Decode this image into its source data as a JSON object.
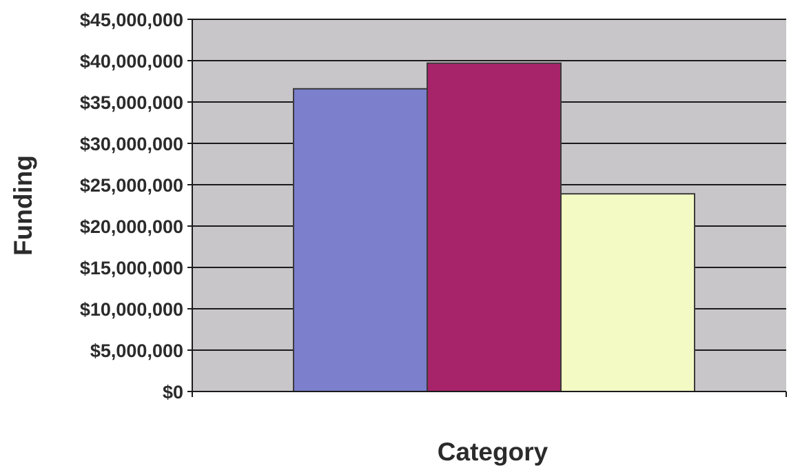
{
  "chart_data": {
    "type": "bar",
    "title": "",
    "xlabel": "Category",
    "ylabel": "Funding",
    "ylim": [
      0,
      45000000
    ],
    "y_tick_step": 5000000,
    "y_tick_labels": [
      "$0",
      "$5,000,000",
      "$10,000,000",
      "$15,000,000",
      "$20,000,000",
      "$25,000,000",
      "$30,000,000",
      "$35,000,000",
      "$40,000,000",
      "$45,000,000"
    ],
    "grid": true,
    "legend": "none",
    "categories": [
      "",
      "",
      ""
    ],
    "values": [
      36600000,
      39700000,
      23900000
    ],
    "colors": [
      "#7b7fcc",
      "#a8246a",
      "#f4fac4"
    ]
  },
  "style": {
    "plot_background": "#c9c6c9",
    "gridline_color": "#1a1a1a",
    "bar_border": "#3a3a3a"
  }
}
